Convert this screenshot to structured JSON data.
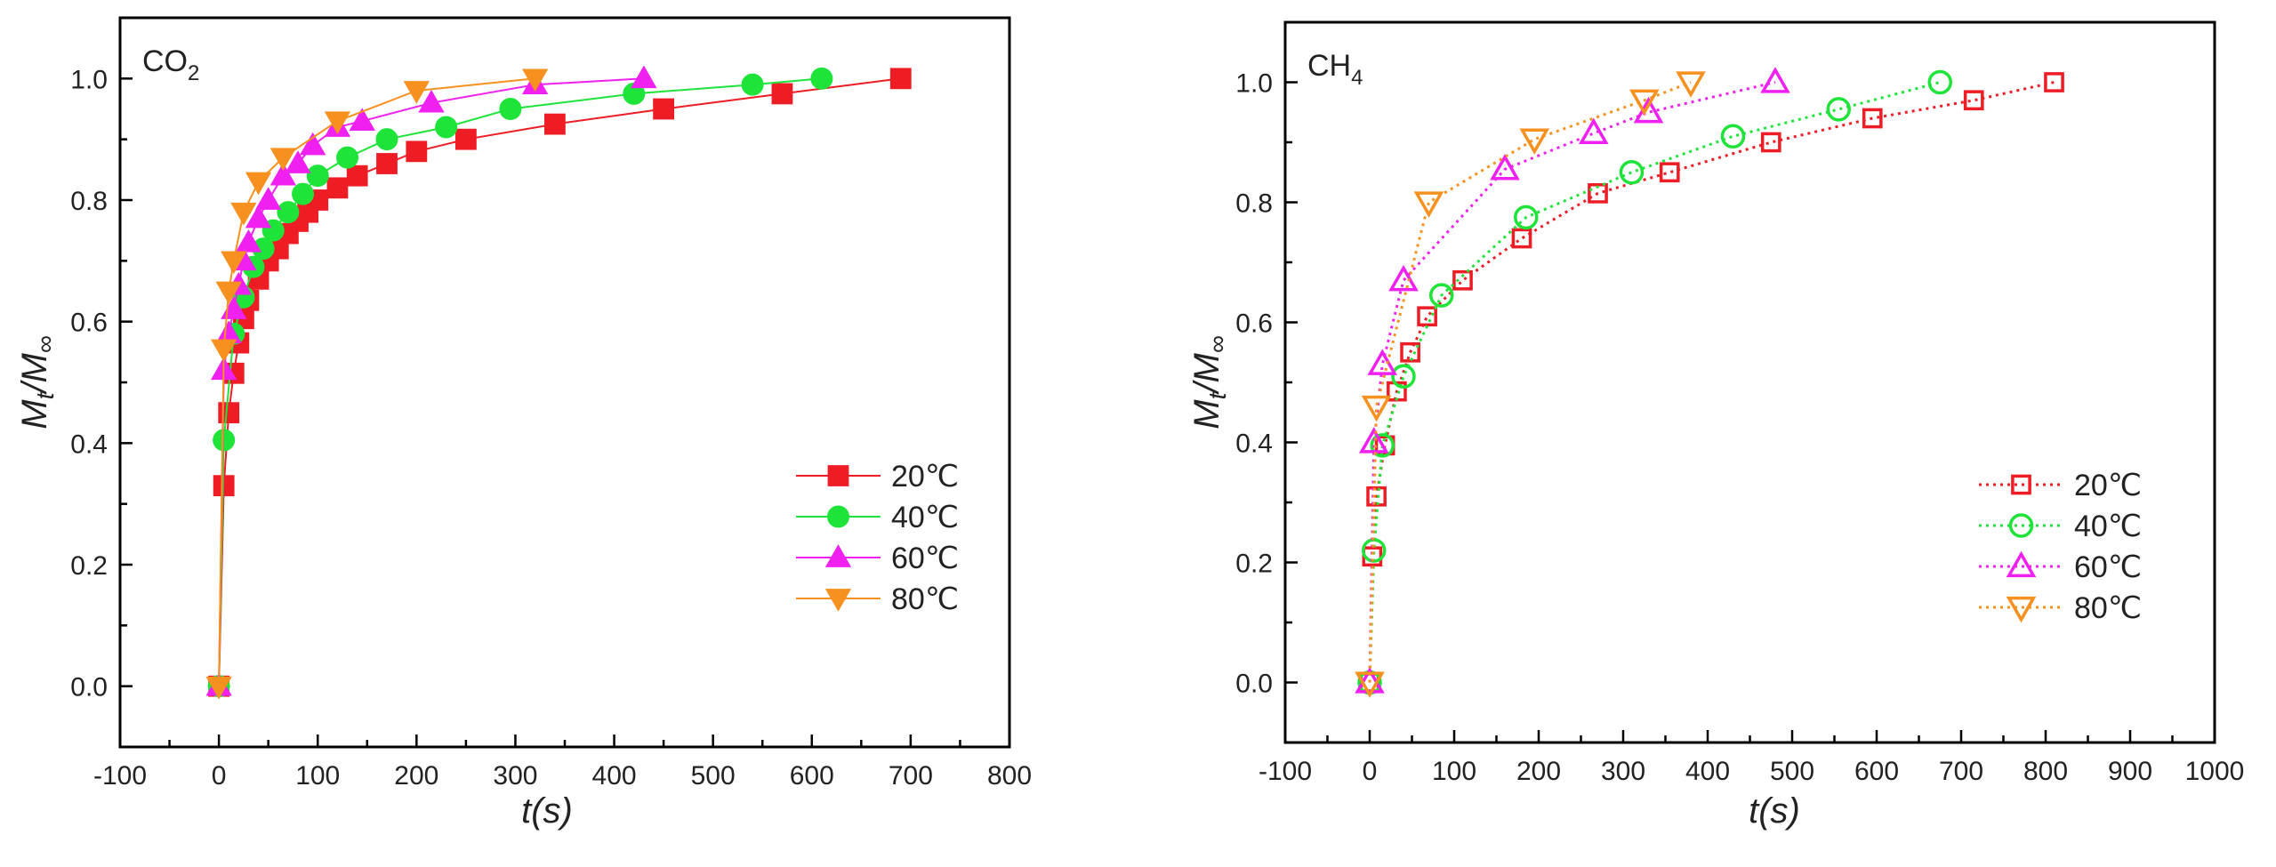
{
  "chart_data": [
    {
      "type": "line",
      "title": "CO",
      "title_subscript": "2",
      "xlabel": "t(s)",
      "ylabel_main": "M",
      "ylabel_sub1": "t",
      "ylabel_mid": "/M",
      "ylabel_sub2": "∞",
      "xlim": [
        -100,
        800
      ],
      "ylim": [
        -0.1,
        1.1
      ],
      "xticks": [
        -100,
        0,
        100,
        200,
        300,
        400,
        500,
        600,
        700,
        800
      ],
      "yticks": [
        0.0,
        0.2,
        0.4,
        0.6,
        0.8,
        1.0
      ],
      "marker_fill": "filled",
      "line_style": "solid",
      "legend_position": "center-right",
      "series": [
        {
          "name": "20℃",
          "color": "#ee1c25",
          "marker": "square",
          "x": [
            0,
            5,
            10,
            15,
            20,
            25,
            30,
            40,
            50,
            60,
            70,
            80,
            90,
            100,
            120,
            140,
            170,
            200,
            250,
            340,
            450,
            570,
            690
          ],
          "y": [
            0,
            0.33,
            0.45,
            0.515,
            0.565,
            0.605,
            0.635,
            0.67,
            0.7,
            0.72,
            0.745,
            0.765,
            0.78,
            0.8,
            0.82,
            0.84,
            0.86,
            0.88,
            0.9,
            0.925,
            0.95,
            0.975,
            1.0
          ]
        },
        {
          "name": "40℃",
          "color": "#1ee43a",
          "marker": "circle",
          "x": [
            0,
            5,
            15,
            25,
            35,
            45,
            55,
            70,
            85,
            100,
            130,
            170,
            230,
            295,
            420,
            540,
            610
          ],
          "y": [
            0,
            0.405,
            0.58,
            0.64,
            0.69,
            0.72,
            0.75,
            0.78,
            0.81,
            0.84,
            0.87,
            0.9,
            0.92,
            0.95,
            0.975,
            0.99,
            1.0
          ]
        },
        {
          "name": "60℃",
          "color": "#f020f0",
          "marker": "triangle-up",
          "x": [
            0,
            5,
            10,
            15,
            20,
            25,
            30,
            40,
            50,
            65,
            80,
            95,
            120,
            145,
            215,
            320,
            430
          ],
          "y": [
            0,
            0.52,
            0.58,
            0.62,
            0.66,
            0.7,
            0.73,
            0.77,
            0.8,
            0.84,
            0.86,
            0.89,
            0.92,
            0.93,
            0.96,
            0.99,
            1.0
          ]
        },
        {
          "name": "80℃",
          "color": "#f6901e",
          "marker": "triangle-down",
          "x": [
            0,
            5,
            10,
            15,
            25,
            40,
            65,
            120,
            200,
            320
          ],
          "y": [
            0,
            0.555,
            0.65,
            0.7,
            0.78,
            0.83,
            0.87,
            0.93,
            0.98,
            1.0
          ]
        }
      ]
    },
    {
      "type": "line",
      "title": "CH",
      "title_subscript": "4",
      "xlabel": "t(s)",
      "ylabel_main": "M",
      "ylabel_sub1": "t",
      "ylabel_mid": "/M",
      "ylabel_sub2": "∞",
      "xlim": [
        -100,
        1000
      ],
      "ylim": [
        -0.1,
        1.1
      ],
      "xticks": [
        -100,
        0,
        100,
        200,
        300,
        400,
        500,
        600,
        700,
        800,
        900,
        1000
      ],
      "yticks": [
        0.0,
        0.2,
        0.4,
        0.6,
        0.8,
        1.0
      ],
      "marker_fill": "open",
      "line_style": "dotted",
      "legend_position": "lower-right",
      "series": [
        {
          "name": "20℃",
          "color": "#ee1c25",
          "marker": "square",
          "x": [
            0,
            3,
            8,
            18,
            32,
            48,
            68,
            110,
            180,
            270,
            355,
            475,
            595,
            715,
            810
          ],
          "y": [
            0,
            0.21,
            0.31,
            0.395,
            0.485,
            0.55,
            0.61,
            0.67,
            0.74,
            0.815,
            0.85,
            0.9,
            0.94,
            0.97,
            1.0
          ]
        },
        {
          "name": "40℃",
          "color": "#1ee43a",
          "marker": "circle",
          "x": [
            0,
            5,
            15,
            40,
            85,
            185,
            310,
            430,
            555,
            675
          ],
          "y": [
            0,
            0.22,
            0.395,
            0.51,
            0.645,
            0.775,
            0.85,
            0.91,
            0.955,
            1.0
          ]
        },
        {
          "name": "60℃",
          "color": "#f020f0",
          "marker": "triangle-up",
          "x": [
            0,
            5,
            15,
            40,
            160,
            265,
            330,
            480
          ],
          "y": [
            0,
            0.4,
            0.53,
            0.67,
            0.855,
            0.915,
            0.95,
            1.0
          ]
        },
        {
          "name": "80℃",
          "color": "#f6901e",
          "marker": "triangle-down",
          "x": [
            0,
            8,
            70,
            195,
            325,
            380
          ],
          "y": [
            0,
            0.46,
            0.8,
            0.905,
            0.97,
            1.0
          ]
        }
      ]
    }
  ]
}
